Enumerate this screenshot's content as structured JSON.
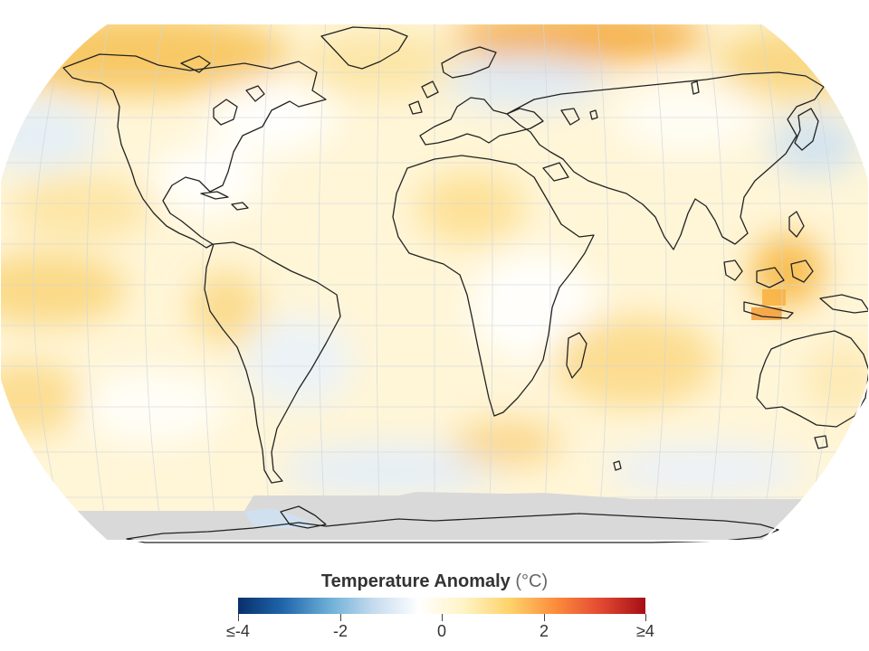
{
  "legend": {
    "title": "Temperature Anomaly",
    "unit": "(°C)",
    "ticks": [
      {
        "value": -4,
        "label": "≤-4"
      },
      {
        "value": -2,
        "label": "-2"
      },
      {
        "value": 0,
        "label": "0"
      },
      {
        "value": 2,
        "label": "2"
      },
      {
        "value": 4,
        "label": "≥4"
      }
    ],
    "colors": [
      "#08306b",
      "#2166ac",
      "#6baed6",
      "#c6dbef",
      "#ffffff",
      "#fff3c4",
      "#fdd36a",
      "#fd8d3c",
      "#e34a33",
      "#a50f15"
    ]
  },
  "map": {
    "projection": "robinson",
    "no_data_color": "#d9d9d9",
    "coastline_color": "#222222"
  }
}
